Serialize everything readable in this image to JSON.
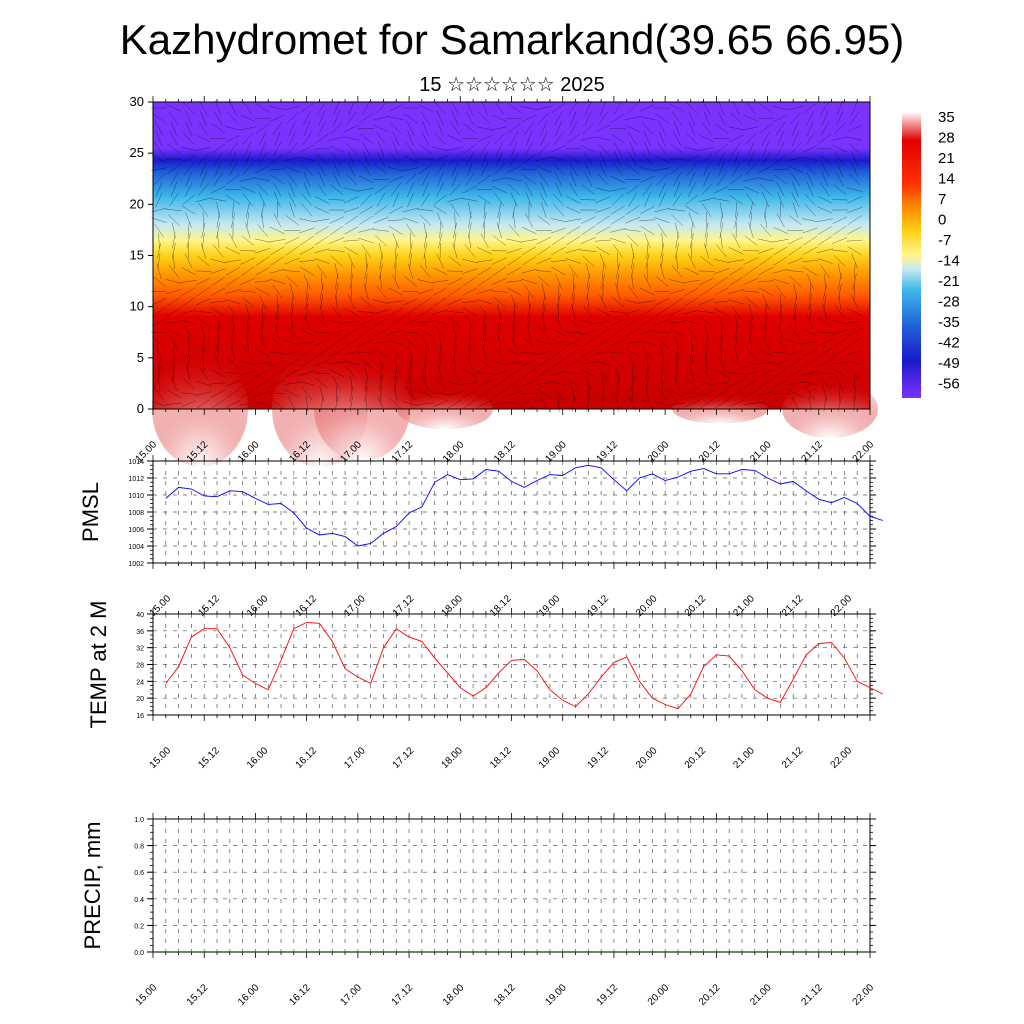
{
  "title": "Kazhydromet for Samarkand(39.65 66.95)",
  "subtitle": "15 ☆☆☆☆☆☆ 2025",
  "chart_data": [
    {
      "type": "heatmap",
      "xlabel": "",
      "ylabel": "",
      "x_tick_labels": [
        "15.00",
        "15.12",
        "16.00",
        "16.12",
        "17.00",
        "17.12",
        "18.00",
        "18.12",
        "19.00",
        "19.12",
        "20.00",
        "20.12",
        "21.00",
        "21.12",
        "22.00"
      ],
      "ylim": [
        0,
        30
      ],
      "y_ticks": [
        0,
        5,
        10,
        15,
        20,
        25,
        30
      ],
      "colorbar_labels": [
        "35",
        "28",
        "21",
        "14",
        "7",
        "0",
        "-7",
        "-14",
        "-21",
        "-28",
        "-35",
        "-42",
        "-49",
        "-56"
      ],
      "colorbar_range": [
        -63,
        42
      ],
      "colors": [
        "#7a33ff",
        "#1a1acc",
        "#2a7fe0",
        "#3fb8ea",
        "#b8e0f0",
        "#fff58a",
        "#ffd21a",
        "#ff9900",
        "#ff5a00",
        "#e00000",
        "#c80000",
        "#f0a0a0",
        "#ffffff"
      ],
      "description_levels": [
        {
          "height": 0,
          "value": 30
        },
        {
          "height": 5,
          "value": 25
        },
        {
          "height": 10,
          "value": 10
        },
        {
          "height": 15,
          "value": -12
        },
        {
          "height": 20,
          "value": -35
        },
        {
          "height": 24,
          "value": -56
        },
        {
          "height": 30,
          "value": -60
        }
      ]
    },
    {
      "type": "line",
      "ylabel": "PMSL",
      "ylim": [
        1002,
        1014
      ],
      "y_ticks": [
        1002,
        1004,
        1006,
        1008,
        1010,
        1012,
        1014
      ],
      "x_tick_labels": [
        "15.00",
        "15.12",
        "16.00",
        "16.12",
        "17.00",
        "17.12",
        "18.00",
        "18.12",
        "19.00",
        "19.12",
        "20.00",
        "20.12",
        "21.00",
        "21.12",
        "22.00"
      ],
      "color": "#0000ff",
      "values": [
        1009.6,
        1010.9,
        1010.7,
        1009.9,
        1009.8,
        1010.5,
        1010.4,
        1009.6,
        1008.9,
        1009.0,
        1007.9,
        1006.1,
        1005.3,
        1005.5,
        1005.1,
        1004.0,
        1004.3,
        1005.5,
        1006.3,
        1007.9,
        1008.6,
        1011.5,
        1012.4,
        1011.8,
        1011.9,
        1013.0,
        1012.8,
        1011.6,
        1010.9,
        1011.7,
        1012.4,
        1012.3,
        1013.2,
        1013.5,
        1013.2,
        1011.8,
        1010.5,
        1012.0,
        1012.5,
        1011.7,
        1012.1,
        1012.8,
        1013.1,
        1012.5,
        1012.5,
        1013.0,
        1012.9,
        1012.0,
        1011.3,
        1011.6,
        1010.5,
        1009.5,
        1009.1,
        1009.7,
        1009.0,
        1007.5,
        1007.0
      ]
    },
    {
      "type": "line",
      "ylabel": "TEMP at 2 M",
      "ylim": [
        16,
        40
      ],
      "y_ticks": [
        16,
        20,
        24,
        28,
        32,
        36,
        40
      ],
      "x_tick_labels": [
        "15.00",
        "15.12",
        "16.00",
        "16.12",
        "17.00",
        "17.12",
        "18.00",
        "18.12",
        "19.00",
        "19.12",
        "20.00",
        "20.12",
        "21.00",
        "21.12",
        "22.00"
      ],
      "color": "#ff0000",
      "values": [
        23.5,
        27.5,
        34.5,
        36.5,
        36.5,
        32.0,
        25.5,
        23.5,
        22.0,
        29.0,
        36.5,
        38.0,
        37.8,
        33.5,
        27.0,
        25.0,
        23.5,
        32.0,
        36.5,
        34.5,
        33.5,
        29.5,
        26.0,
        22.5,
        20.5,
        22.5,
        26.0,
        29.0,
        29.2,
        26.5,
        22.0,
        19.5,
        18.0,
        21.0,
        25.0,
        28.5,
        29.8,
        24.0,
        20.0,
        18.5,
        17.5,
        21.0,
        27.5,
        30.3,
        30.0,
        26.5,
        22.0,
        20.0,
        19.0,
        24.5,
        30.2,
        33.0,
        33.2,
        29.5,
        24.0,
        22.5,
        21.0
      ]
    },
    {
      "type": "line",
      "ylabel": "PRECIP, mm",
      "ylim": [
        0.0,
        1.0
      ],
      "y_tick_labels": [
        "0.0",
        "0.2",
        "0.4",
        "0.6",
        "0.8",
        "1.0"
      ],
      "y_ticks": [
        0.0,
        0.2,
        0.4,
        0.6,
        0.8,
        1.0
      ],
      "x_tick_labels": [
        "15.00",
        "15.12",
        "16.00",
        "16.12",
        "17.00",
        "17.12",
        "18.00",
        "18.12",
        "19.00",
        "19.12",
        "20.00",
        "20.12",
        "21.00",
        "21.12",
        "22.00"
      ],
      "color": "#004d00",
      "values": [
        0,
        0,
        0,
        0,
        0,
        0,
        0,
        0,
        0,
        0,
        0,
        0,
        0,
        0,
        0,
        0,
        0,
        0,
        0,
        0,
        0,
        0,
        0,
        0,
        0,
        0,
        0,
        0,
        0,
        0,
        0,
        0,
        0,
        0,
        0,
        0,
        0,
        0,
        0,
        0,
        0,
        0,
        0,
        0,
        0,
        0,
        0,
        0,
        0,
        0,
        0,
        0,
        0,
        0,
        0,
        0,
        0
      ]
    }
  ]
}
